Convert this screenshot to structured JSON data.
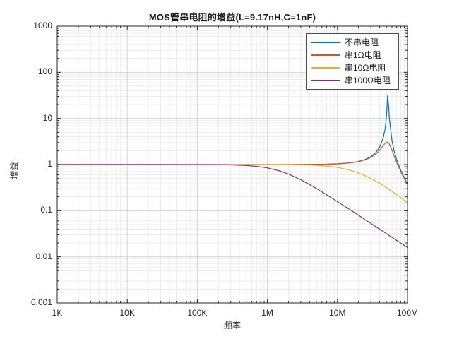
{
  "figure": {
    "background": "#ffffff",
    "border_color": "#262626"
  },
  "chart_data": {
    "type": "line",
    "title": "MOS管串电阻的增益(L=9.17nH,C=1nF)",
    "xlabel": "频率",
    "ylabel": "增益",
    "x_scale": "log",
    "y_scale": "log",
    "xlim": [
      1000,
      100000000
    ],
    "ylim": [
      0.001,
      1000
    ],
    "grid": "major and minor log gridlines, light grey",
    "legend_position": "top-right inside plot, boxed",
    "x_ticks": {
      "values": [
        1000,
        10000,
        100000,
        1000000,
        10000000,
        100000000
      ],
      "labels": [
        "1K",
        "10K",
        "100K",
        "1M",
        "10M",
        "100M"
      ]
    },
    "y_ticks": {
      "values": [
        0.001,
        0.01,
        0.1,
        1,
        10,
        100,
        1000
      ],
      "labels": [
        "0.001",
        "0.01",
        "0.1",
        "1",
        "10",
        "100",
        "1000"
      ]
    },
    "frequencies": [
      1000,
      3000,
      10000,
      30000,
      100000,
      200000,
      300000,
      500000,
      700000,
      1000000,
      1500000,
      2000000,
      3000000,
      4000000,
      5000000,
      7000000,
      10000000,
      15000000,
      20000000,
      25000000,
      30000000,
      35000000,
      40000000,
      45000000,
      48000000,
      50000000,
      51000000,
      52000000,
      54000000,
      55000000,
      60000000,
      65000000,
      70000000,
      75000000,
      80000000,
      90000000,
      100000000
    ],
    "series": [
      {
        "name": "不串电阻",
        "color": "#0072BD",
        "values": [
          1,
          1,
          1,
          1,
          1,
          1,
          1,
          1,
          1,
          1.0,
          1.001,
          1.001,
          1.003,
          1.006,
          1.009,
          1.018,
          1.038,
          1.089,
          1.169,
          1.292,
          1.483,
          1.797,
          2.377,
          3.747,
          6.03,
          10.55,
          17.17,
          31.0,
          17.94,
          10.48,
          3.3,
          1.888,
          1.292,
          0.965,
          0.759,
          0.517,
          0.382
        ]
      },
      {
        "name": "串1Ω电阻",
        "color": "#D95319",
        "values": [
          1,
          1,
          1,
          1,
          1,
          1,
          1,
          1,
          1,
          1.0,
          1.001,
          1.001,
          1.003,
          1.006,
          1.009,
          1.017,
          1.035,
          1.083,
          1.157,
          1.266,
          1.429,
          1.671,
          2.04,
          2.572,
          2.906,
          3.05,
          3.071,
          3.055,
          2.908,
          2.79,
          2.067,
          1.495,
          1.124,
          0.878,
          0.709,
          0.497,
          0.371
        ]
      },
      {
        "name": "串10Ω电阻",
        "color": "#EDB120",
        "values": [
          1,
          1,
          1,
          1,
          1.0,
          1.0,
          1.0,
          0.9995,
          0.999,
          0.998,
          0.996,
          0.994,
          0.986,
          0.975,
          0.962,
          0.929,
          0.869,
          0.76,
          0.658,
          0.571,
          0.499,
          0.441,
          0.392,
          0.352,
          0.331,
          0.318,
          0.312,
          0.306,
          0.295,
          0.289,
          0.264,
          0.243,
          0.224,
          0.207,
          0.193,
          0.167,
          0.147
        ]
      },
      {
        "name": "串100Ω电阻",
        "color": "#7E2F8E",
        "values": [
          1,
          1,
          1.0,
          1.0,
          0.998,
          0.992,
          0.983,
          0.954,
          0.916,
          0.847,
          0.728,
          0.623,
          0.469,
          0.37,
          0.304,
          0.222,
          0.157,
          0.106,
          0.0795,
          0.0636,
          0.053,
          0.0455,
          0.0398,
          0.0354,
          0.0332,
          0.0318,
          0.0312,
          0.0306,
          0.0295,
          0.0289,
          0.0265,
          0.0245,
          0.0227,
          0.0212,
          0.0199,
          0.0177,
          0.0159
        ]
      }
    ]
  }
}
